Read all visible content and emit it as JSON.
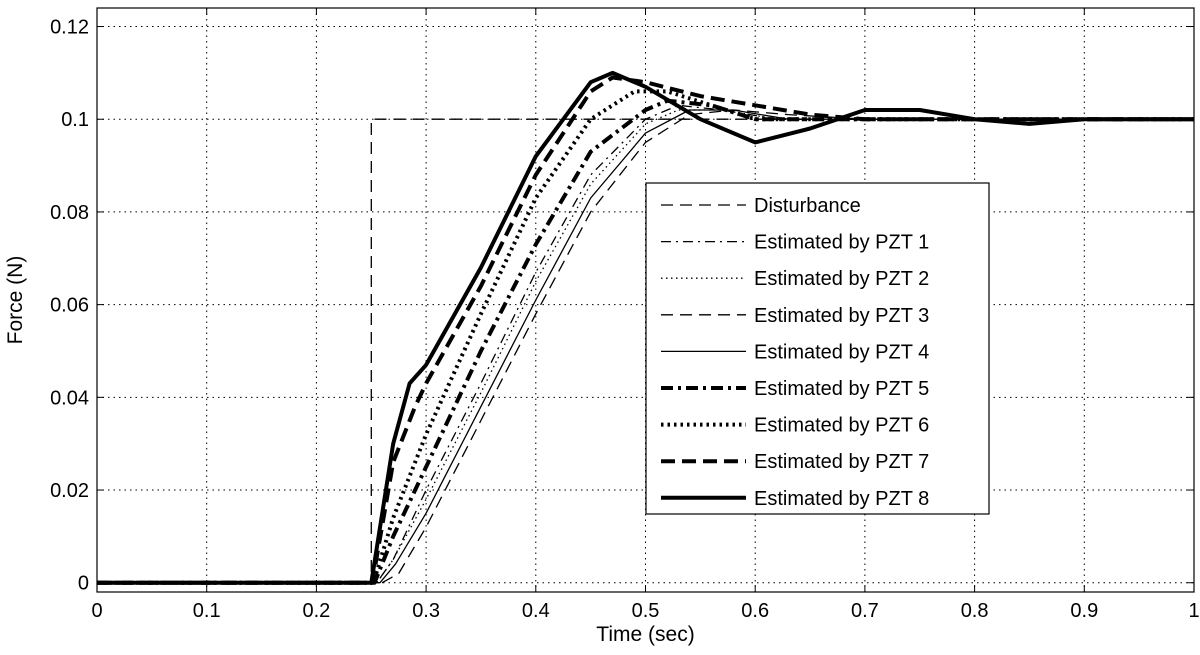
{
  "chart_data": {
    "type": "line",
    "xlabel": "Time (sec)",
    "ylabel": "Force (N)",
    "xlim": [
      0,
      1
    ],
    "ylim": [
      -0.002,
      0.124
    ],
    "xticks": [
      0,
      0.1,
      0.2,
      0.3,
      0.4,
      0.5,
      0.6,
      0.7,
      0.8,
      0.9,
      1
    ],
    "xtick_labels": [
      "0",
      "0.1",
      "0.2",
      "0.3",
      "0.4",
      "0.5",
      "0.6",
      "0.7",
      "0.8",
      "0.9",
      "1"
    ],
    "yticks": [
      0,
      0.02,
      0.04,
      0.06,
      0.08,
      0.1,
      0.12
    ],
    "ytick_labels": [
      "0",
      "0.02",
      "0.04",
      "0.06",
      "0.08",
      "0.1",
      "0.12"
    ],
    "grid": true,
    "legend_position": "center-right",
    "series": [
      {
        "name": "Disturbance",
        "color": "#000000",
        "style": "dashed",
        "weight": "thin",
        "x": [
          0,
          0.25,
          0.25,
          1
        ],
        "y": [
          0,
          0,
          0.1,
          0.1
        ]
      },
      {
        "name": "Estimated by PZT 1",
        "color": "#000000",
        "style": "dashdot",
        "weight": "thin",
        "x": [
          0,
          0.255,
          0.27,
          0.3,
          0.35,
          0.4,
          0.45,
          0.5,
          0.53,
          0.57,
          0.62,
          0.7,
          0.8,
          0.9,
          1
        ],
        "y": [
          0,
          0,
          0.005,
          0.02,
          0.043,
          0.067,
          0.088,
          0.1,
          0.103,
          0.102,
          0.1,
          0.1,
          0.1,
          0.1,
          0.1
        ]
      },
      {
        "name": "Estimated by PZT 2",
        "color": "#000000",
        "style": "dotted",
        "weight": "thin",
        "x": [
          0,
          0.255,
          0.27,
          0.3,
          0.35,
          0.4,
          0.45,
          0.5,
          0.53,
          0.57,
          0.62,
          0.7,
          0.8,
          0.9,
          1
        ],
        "y": [
          0,
          0,
          0.005,
          0.018,
          0.041,
          0.065,
          0.086,
          0.099,
          0.102,
          0.102,
          0.1,
          0.1,
          0.1,
          0.1,
          0.1
        ]
      },
      {
        "name": "Estimated by PZT 3",
        "color": "#000000",
        "style": "dashed",
        "weight": "thin",
        "x": [
          0,
          0.26,
          0.275,
          0.3,
          0.35,
          0.4,
          0.45,
          0.5,
          0.54,
          0.58,
          0.63,
          0.7,
          0.8,
          0.9,
          1
        ],
        "y": [
          0,
          0,
          0.002,
          0.012,
          0.035,
          0.058,
          0.08,
          0.095,
          0.101,
          0.102,
          0.101,
          0.1,
          0.1,
          0.1,
          0.1
        ]
      },
      {
        "name": "Estimated by PZT 4",
        "color": "#000000",
        "style": "solid",
        "weight": "thin",
        "x": [
          0,
          0.258,
          0.272,
          0.3,
          0.35,
          0.4,
          0.45,
          0.5,
          0.54,
          0.58,
          0.63,
          0.7,
          0.8,
          0.9,
          1
        ],
        "y": [
          0,
          0,
          0.004,
          0.015,
          0.038,
          0.061,
          0.083,
          0.097,
          0.102,
          0.102,
          0.1,
          0.1,
          0.1,
          0.1,
          0.1
        ]
      },
      {
        "name": "Estimated by PZT 5",
        "color": "#000000",
        "style": "dashdot",
        "weight": "thick",
        "x": [
          0,
          0.253,
          0.27,
          0.3,
          0.35,
          0.4,
          0.45,
          0.5,
          0.52,
          0.56,
          0.6,
          0.7,
          0.8,
          0.9,
          1
        ],
        "y": [
          0,
          0,
          0.01,
          0.025,
          0.05,
          0.073,
          0.093,
          0.102,
          0.104,
          0.103,
          0.1,
          0.1,
          0.1,
          0.1,
          0.1
        ]
      },
      {
        "name": "Estimated by PZT 6",
        "color": "#000000",
        "style": "dotted",
        "weight": "thick",
        "x": [
          0,
          0.252,
          0.27,
          0.3,
          0.35,
          0.4,
          0.45,
          0.49,
          0.52,
          0.56,
          0.6,
          0.7,
          0.8,
          0.9,
          1
        ],
        "y": [
          0,
          0,
          0.014,
          0.032,
          0.058,
          0.083,
          0.1,
          0.106,
          0.106,
          0.103,
          0.1,
          0.1,
          0.1,
          0.1,
          0.1
        ]
      },
      {
        "name": "Estimated by PZT 7",
        "color": "#000000",
        "style": "dashed",
        "weight": "thick",
        "x": [
          0,
          0.251,
          0.27,
          0.29,
          0.3,
          0.35,
          0.4,
          0.45,
          0.47,
          0.5,
          0.55,
          0.6,
          0.65,
          0.7,
          0.8,
          0.9,
          1
        ],
        "y": [
          0,
          0,
          0.026,
          0.038,
          0.043,
          0.064,
          0.088,
          0.106,
          0.109,
          0.108,
          0.105,
          0.103,
          0.101,
          0.1,
          0.1,
          0.1,
          0.1
        ]
      },
      {
        "name": "Estimated by PZT 8",
        "color": "#000000",
        "style": "solid",
        "weight": "thick",
        "x": [
          0,
          0.25,
          0.27,
          0.285,
          0.3,
          0.35,
          0.4,
          0.45,
          0.47,
          0.5,
          0.55,
          0.6,
          0.65,
          0.7,
          0.75,
          0.8,
          0.85,
          0.9,
          1
        ],
        "y": [
          0,
          0,
          0.03,
          0.043,
          0.047,
          0.068,
          0.092,
          0.108,
          0.11,
          0.107,
          0.1,
          0.095,
          0.098,
          0.102,
          0.102,
          0.1,
          0.099,
          0.1,
          0.1
        ]
      }
    ]
  }
}
